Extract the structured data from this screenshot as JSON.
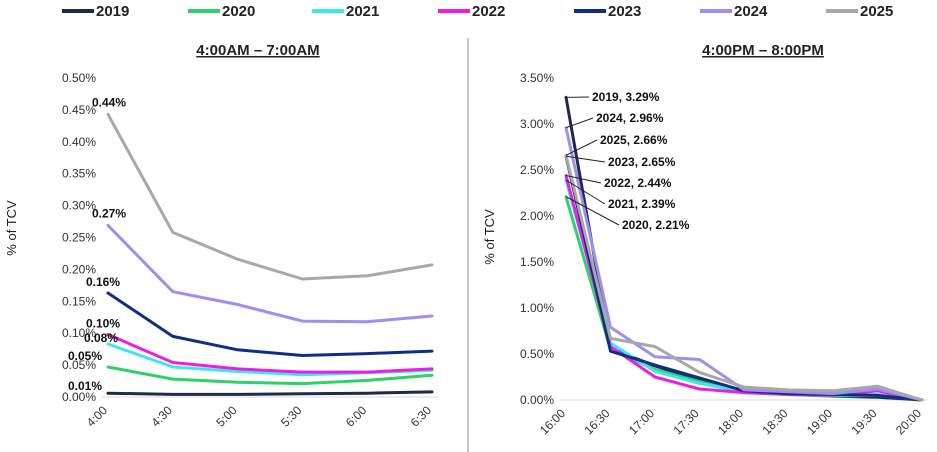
{
  "colors": {
    "2019": "#1e2a4a",
    "2020": "#2fd16b",
    "2021": "#3fe6f2",
    "2022": "#ec1fe0",
    "2023": "#0f2f86",
    "2024": "#9d8ff0",
    "2025": "#a8a8a8"
  },
  "legend": [
    "2019",
    "2020",
    "2021",
    "2022",
    "2023",
    "2024",
    "2025"
  ],
  "chart_data": [
    {
      "type": "line",
      "title": "4:00AM – 7:00AM",
      "ylabel": "% of TCV",
      "xlabel": "",
      "x": [
        "4:00",
        "4:30",
        "5:00",
        "5:30",
        "6:00",
        "6:30"
      ],
      "ylim": [
        0,
        0.5
      ],
      "yticks": [
        "0.00%",
        "0.05%",
        "0.10%",
        "0.15%",
        "0.20%",
        "0.25%",
        "0.30%",
        "0.35%",
        "0.40%",
        "0.45%",
        "0.50%"
      ],
      "series": [
        {
          "name": "2019",
          "values": [
            0.006,
            0.004,
            0.004,
            0.005,
            0.006,
            0.008
          ]
        },
        {
          "name": "2020",
          "values": [
            0.047,
            0.028,
            0.023,
            0.021,
            0.026,
            0.034
          ]
        },
        {
          "name": "2021",
          "values": [
            0.083,
            0.047,
            0.04,
            0.035,
            0.038,
            0.042
          ]
        },
        {
          "name": "2022",
          "values": [
            0.098,
            0.054,
            0.044,
            0.039,
            0.039,
            0.044
          ]
        },
        {
          "name": "2023",
          "values": [
            0.163,
            0.095,
            0.074,
            0.065,
            0.068,
            0.072
          ]
        },
        {
          "name": "2024",
          "values": [
            0.269,
            0.165,
            0.145,
            0.119,
            0.118,
            0.127
          ]
        },
        {
          "name": "2025",
          "values": [
            0.443,
            0.258,
            0.216,
            0.185,
            0.19,
            0.207
          ]
        }
      ],
      "annotations": [
        {
          "text": "0.44%",
          "x": "4:00",
          "y": 0.443
        },
        {
          "text": "0.27%",
          "x": "4:00",
          "y": 0.269
        },
        {
          "text": "0.16%",
          "x": "4:00",
          "y": 0.163
        },
        {
          "text": "0.10%",
          "x": "4:00",
          "y": 0.098
        },
        {
          "text": "0.08%",
          "x": "4:00",
          "y": 0.083
        },
        {
          "text": "0.05%",
          "x": "4:00",
          "y": 0.047
        },
        {
          "text": "0.01%",
          "x": "4:00",
          "y": 0.006
        }
      ],
      "grid": false,
      "legend_position": "top"
    },
    {
      "type": "line",
      "title": "4:00PM – 8:00PM",
      "ylabel": "% of TCV",
      "xlabel": "",
      "x": [
        "16:00",
        "16:30",
        "17:00",
        "17:30",
        "18:00",
        "18:30",
        "19:00",
        "19:30",
        "20:00"
      ],
      "ylim": [
        0,
        3.5
      ],
      "yticks": [
        "0.00%",
        "0.50%",
        "1.00%",
        "1.50%",
        "2.00%",
        "2.50%",
        "3.00%",
        "3.50%"
      ],
      "series": [
        {
          "name": "2019",
          "values": [
            3.29,
            0.56,
            0.37,
            0.22,
            0.1,
            0.07,
            0.04,
            0.03,
            0.0
          ]
        },
        {
          "name": "2020",
          "values": [
            2.21,
            0.55,
            0.33,
            0.2,
            0.08,
            0.06,
            0.04,
            0.05,
            0.0
          ]
        },
        {
          "name": "2021",
          "values": [
            2.39,
            0.62,
            0.31,
            0.18,
            0.09,
            0.06,
            0.05,
            0.06,
            0.0
          ]
        },
        {
          "name": "2022",
          "values": [
            2.44,
            0.58,
            0.25,
            0.12,
            0.08,
            0.06,
            0.05,
            0.1,
            0.0
          ]
        },
        {
          "name": "2023",
          "values": [
            2.65,
            0.53,
            0.38,
            0.24,
            0.1,
            0.07,
            0.06,
            0.05,
            0.0
          ]
        },
        {
          "name": "2024",
          "values": [
            2.96,
            0.79,
            0.47,
            0.44,
            0.11,
            0.09,
            0.07,
            0.12,
            0.0
          ]
        },
        {
          "name": "2025",
          "values": [
            2.66,
            0.67,
            0.58,
            0.3,
            0.14,
            0.11,
            0.1,
            0.15,
            0.0
          ]
        }
      ],
      "annotations": [
        {
          "text": "2019, 3.29%",
          "x": "16:00",
          "y": 3.29
        },
        {
          "text": "2024, 2.96%",
          "x": "16:00",
          "y": 2.96
        },
        {
          "text": "2025, 2.66%",
          "x": "16:00",
          "y": 2.66
        },
        {
          "text": "2023, 2.65%",
          "x": "16:00",
          "y": 2.65
        },
        {
          "text": "2022, 2.44%",
          "x": "16:00",
          "y": 2.44
        },
        {
          "text": "2021, 2.39%",
          "x": "16:00",
          "y": 2.39
        },
        {
          "text": "2020, 2.21%",
          "x": "16:00",
          "y": 2.21
        }
      ],
      "grid": false,
      "legend_position": "top"
    }
  ]
}
